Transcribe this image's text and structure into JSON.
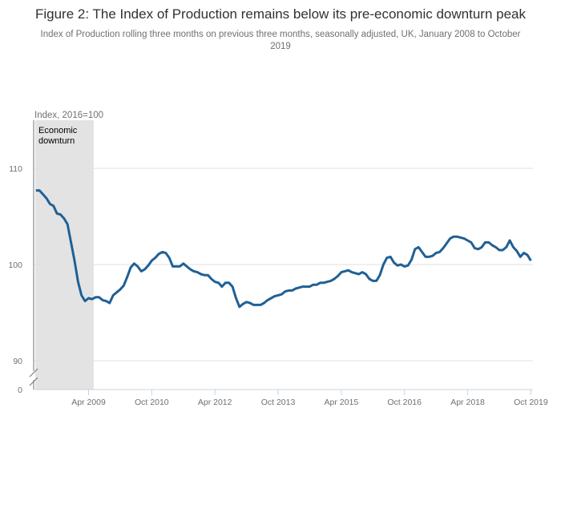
{
  "chart_data": {
    "type": "line",
    "title": "Figure 2: The Index of Production remains below its pre-economic downturn peak",
    "subtitle": "Index of Production rolling three months on previous three months, seasonally adjusted, UK, January 2008 to October 2019",
    "ylabel": "Index, 2016=100",
    "xlabel": "",
    "x_range": [
      "2008-01",
      "2019-10"
    ],
    "ylim": [
      90,
      113
    ],
    "y_axis_break": true,
    "y_ticks": [
      "0",
      "90",
      "100",
      "110"
    ],
    "x_ticks": [
      "Apr 2009",
      "Oct 2010",
      "Apr 2012",
      "Oct 2013",
      "Apr 2015",
      "Oct 2016",
      "Apr 2018",
      "Oct 2019"
    ],
    "grid": "horizontal",
    "shaded_region": {
      "label": "Economic downturn",
      "from": "2008-01",
      "to": "2009-05",
      "color": "#e3e3e3"
    },
    "series_color": "#206095",
    "x": [
      "2008-01",
      "2008-02",
      "2008-03",
      "2008-04",
      "2008-05",
      "2008-06",
      "2008-07",
      "2008-08",
      "2008-09",
      "2008-10",
      "2008-11",
      "2008-12",
      "2009-01",
      "2009-02",
      "2009-03",
      "2009-04",
      "2009-05",
      "2009-06",
      "2009-07",
      "2009-08",
      "2009-09",
      "2009-10",
      "2009-11",
      "2009-12",
      "2010-01",
      "2010-02",
      "2010-03",
      "2010-04",
      "2010-05",
      "2010-06",
      "2010-07",
      "2010-08",
      "2010-09",
      "2010-10",
      "2010-11",
      "2010-12",
      "2011-01",
      "2011-02",
      "2011-03",
      "2011-04",
      "2011-05",
      "2011-06",
      "2011-07",
      "2011-08",
      "2011-09",
      "2011-10",
      "2011-11",
      "2011-12",
      "2012-01",
      "2012-02",
      "2012-03",
      "2012-04",
      "2012-05",
      "2012-06",
      "2012-07",
      "2012-08",
      "2012-09",
      "2012-10",
      "2012-11",
      "2012-12",
      "2013-01",
      "2013-02",
      "2013-03",
      "2013-04",
      "2013-05",
      "2013-06",
      "2013-07",
      "2013-08",
      "2013-09",
      "2013-10",
      "2013-11",
      "2013-12",
      "2014-01",
      "2014-02",
      "2014-03",
      "2014-04",
      "2014-05",
      "2014-06",
      "2014-07",
      "2014-08",
      "2014-09",
      "2014-10",
      "2014-11",
      "2014-12",
      "2015-01",
      "2015-02",
      "2015-03",
      "2015-04",
      "2015-05",
      "2015-06",
      "2015-07",
      "2015-08",
      "2015-09",
      "2015-10",
      "2015-11",
      "2015-12",
      "2016-01",
      "2016-02",
      "2016-03",
      "2016-04",
      "2016-05",
      "2016-06",
      "2016-07",
      "2016-08",
      "2016-09",
      "2016-10",
      "2016-11",
      "2016-12",
      "2017-01",
      "2017-02",
      "2017-03",
      "2017-04",
      "2017-05",
      "2017-06",
      "2017-07",
      "2017-08",
      "2017-09",
      "2017-10",
      "2017-11",
      "2017-12",
      "2018-01",
      "2018-02",
      "2018-03",
      "2018-04",
      "2018-05",
      "2018-06",
      "2018-07",
      "2018-08",
      "2018-09",
      "2018-10",
      "2018-11",
      "2018-12",
      "2019-01",
      "2019-02",
      "2019-03",
      "2019-04",
      "2019-05",
      "2019-06",
      "2019-07",
      "2019-08",
      "2019-09",
      "2019-10"
    ],
    "values": [
      107.7,
      107.7,
      107.3,
      106.9,
      106.3,
      106.1,
      105.3,
      105.2,
      104.8,
      104.2,
      102.3,
      100.4,
      98.2,
      96.8,
      96.2,
      96.5,
      96.4,
      96.6,
      96.6,
      96.3,
      96.2,
      96.0,
      96.8,
      97.1,
      97.4,
      97.8,
      98.7,
      99.7,
      100.1,
      99.8,
      99.3,
      99.5,
      99.9,
      100.4,
      100.7,
      101.1,
      101.3,
      101.2,
      100.7,
      99.8,
      99.8,
      99.8,
      100.1,
      99.8,
      99.5,
      99.3,
      99.2,
      99.0,
      98.9,
      98.9,
      98.5,
      98.2,
      98.1,
      97.7,
      98.1,
      98.1,
      97.7,
      96.5,
      95.6,
      95.9,
      96.1,
      96.0,
      95.8,
      95.8,
      95.8,
      96.0,
      96.3,
      96.5,
      96.7,
      96.8,
      96.9,
      97.2,
      97.3,
      97.3,
      97.5,
      97.6,
      97.7,
      97.7,
      97.7,
      97.9,
      97.9,
      98.1,
      98.1,
      98.2,
      98.3,
      98.5,
      98.8,
      99.2,
      99.3,
      99.4,
      99.2,
      99.1,
      99.0,
      99.2,
      99.0,
      98.5,
      98.3,
      98.3,
      98.9,
      100.0,
      100.7,
      100.8,
      100.2,
      99.9,
      100.0,
      99.8,
      99.9,
      100.5,
      101.6,
      101.8,
      101.3,
      100.8,
      100.8,
      100.9,
      101.2,
      101.3,
      101.7,
      102.2,
      102.7,
      102.9,
      102.9,
      102.8,
      102.7,
      102.5,
      102.3,
      101.7,
      101.6,
      101.8,
      102.3,
      102.3,
      102.0,
      101.8,
      101.5,
      101.5,
      101.8,
      102.5,
      101.8,
      101.4,
      100.8,
      101.2,
      101.0,
      100.4
    ]
  }
}
